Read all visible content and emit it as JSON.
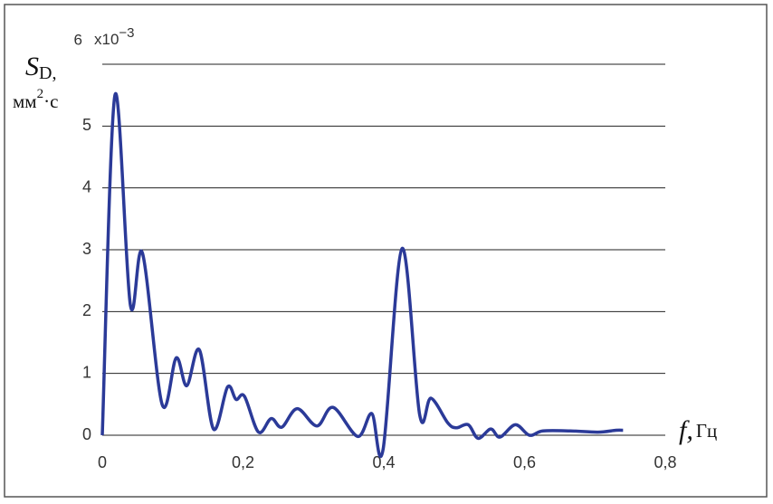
{
  "chart_data": {
    "type": "line",
    "y_label": {
      "symbol": "S",
      "subscript": "D,",
      "unit": "мм",
      "unit_exponent": "2",
      "unit_tail": "·с"
    },
    "x_label": {
      "symbol": "f,",
      "unit": "Гц"
    },
    "y_multiplier": {
      "base": "x10",
      "exponent": "−3"
    },
    "x": [
      0,
      0.018,
      0.04,
      0.057,
      0.085,
      0.105,
      0.12,
      0.138,
      0.158,
      0.178,
      0.19,
      0.202,
      0.222,
      0.24,
      0.255,
      0.277,
      0.305,
      0.328,
      0.363,
      0.383,
      0.399,
      0.426,
      0.451,
      0.467,
      0.491,
      0.503,
      0.52,
      0.534,
      0.552,
      0.565,
      0.587,
      0.607,
      0.626,
      0.665,
      0.704,
      0.73,
      0.74
    ],
    "series": [
      {
        "color": "#2b3a98",
        "values": [
          0,
          5.5,
          2.1,
          2.95,
          0.5,
          1.25,
          0.8,
          1.38,
          0.1,
          0.78,
          0.58,
          0.63,
          0.05,
          0.27,
          0.13,
          0.43,
          0.15,
          0.45,
          -0.02,
          0.35,
          -0.23,
          3.02,
          0.33,
          0.6,
          0.2,
          0.12,
          0.17,
          -0.05,
          0.1,
          -0.03,
          0.17,
          0,
          0.07,
          0.07,
          0.05,
          0.08,
          0.08
        ]
      }
    ],
    "xlim": [
      0,
      0.8
    ],
    "xticks": [
      0,
      {
        "value": 0.2,
        "label": "0,2"
      },
      {
        "value": 0.4,
        "label": "0,4"
      },
      {
        "value": 0.6,
        "label": "0,6"
      },
      {
        "value": 0.8,
        "label": "0,8"
      }
    ],
    "ylim": [
      0,
      6
    ],
    "yticks": [
      0,
      1,
      2,
      3,
      4,
      5,
      6
    ],
    "grid": true
  }
}
